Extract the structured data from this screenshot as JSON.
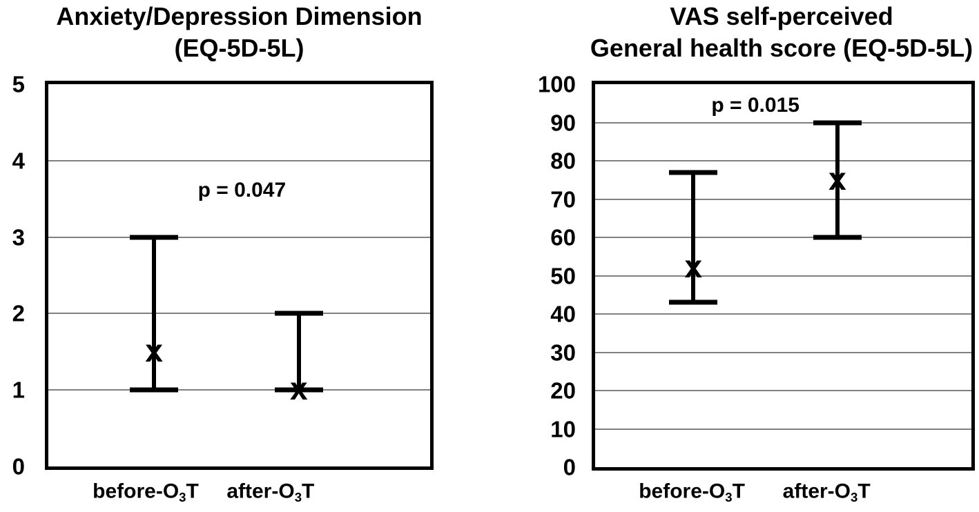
{
  "figure": {
    "background": "#ffffff",
    "ink_color": "#000000",
    "gridline_color": "#808080"
  },
  "chart_data": [
    {
      "type": "scatter",
      "subtype": "mean-with-range-error-bars",
      "title_lines": [
        "Anxiety/Depression Dimension",
        "(EQ-5D-5L)"
      ],
      "p_label": "p = 0.047",
      "ylim": [
        0,
        5
      ],
      "yticks": [
        0,
        1,
        2,
        3,
        4,
        5
      ],
      "grid": true,
      "legend": "none",
      "marker_glyph": "x",
      "categories": [
        {
          "pre": "before-O",
          "sub": "3",
          "post": "T",
          "plain": "before-O3T"
        },
        {
          "pre": "after-O",
          "sub": "3",
          "post": "T",
          "plain": "after-O3T"
        }
      ],
      "series": [
        {
          "name": "before-O3T",
          "mean": 1.5,
          "lower": 1,
          "upper": 3
        },
        {
          "name": "after-O3T",
          "mean": 1.0,
          "lower": 1,
          "upper": 2
        }
      ]
    },
    {
      "type": "scatter",
      "subtype": "mean-with-range-error-bars",
      "title_lines": [
        "VAS self-perceived",
        "General health score (EQ-5D-5L)"
      ],
      "p_label": "p = 0.015",
      "ylim": [
        0,
        100
      ],
      "yticks": [
        0,
        10,
        20,
        30,
        40,
        50,
        60,
        70,
        80,
        90,
        100
      ],
      "grid": true,
      "legend": "none",
      "marker_glyph": "x",
      "categories": [
        {
          "pre": "before-O",
          "sub": "3",
          "post": "T",
          "plain": "before-O3T"
        },
        {
          "pre": "after-O",
          "sub": "3",
          "post": "T",
          "plain": "after-O3T"
        }
      ],
      "series": [
        {
          "name": "before-O3T",
          "mean": 52,
          "lower": 43,
          "upper": 77
        },
        {
          "name": "after-O3T",
          "mean": 75,
          "lower": 60,
          "upper": 90
        }
      ]
    }
  ]
}
